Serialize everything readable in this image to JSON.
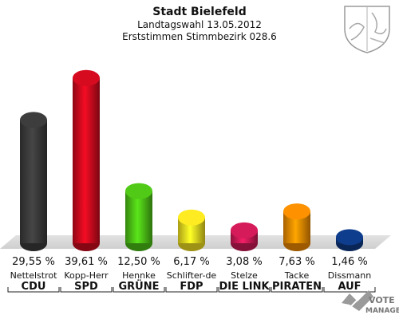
{
  "header": {
    "title": "Stadt Bielefeld",
    "subtitle": "Landtagswahl 13.05.2012",
    "subtitle2": "Erststimmen Stimmbezirk 028.6"
  },
  "watermark": {
    "line1": "VOTE",
    "line2": "MANAGER",
    "icon": "vote-check-icon"
  },
  "crest": {
    "icon": "nrw-coat-of-arms-icon"
  },
  "chart_data": {
    "type": "bar",
    "title": "Stadt Bielefeld",
    "ylim": [
      0,
      45
    ],
    "grid": false,
    "categories": [
      "Nettelstrot",
      "Kopp-Herr",
      "Hennke",
      "Schlifter-de",
      "Stelze",
      "Tacke",
      "Dissmann"
    ],
    "parties": [
      "CDU",
      "SPD",
      "GRÜNE",
      "FDP",
      "DIE LINK",
      "PIRATEN",
      "AUF"
    ],
    "values": [
      29.55,
      39.61,
      12.5,
      6.17,
      3.08,
      7.63,
      1.46
    ],
    "labels": [
      "29,55 %",
      "39,61 %",
      "12,50 %",
      "6,17 %",
      "3,08 %",
      "7,63 %",
      "1,46 %"
    ],
    "colors": [
      "#3a3a3a",
      "#cc0a1e",
      "#4cc016",
      "#f2e020",
      "#cc1a56",
      "#f28a00",
      "#0e3a86"
    ]
  }
}
